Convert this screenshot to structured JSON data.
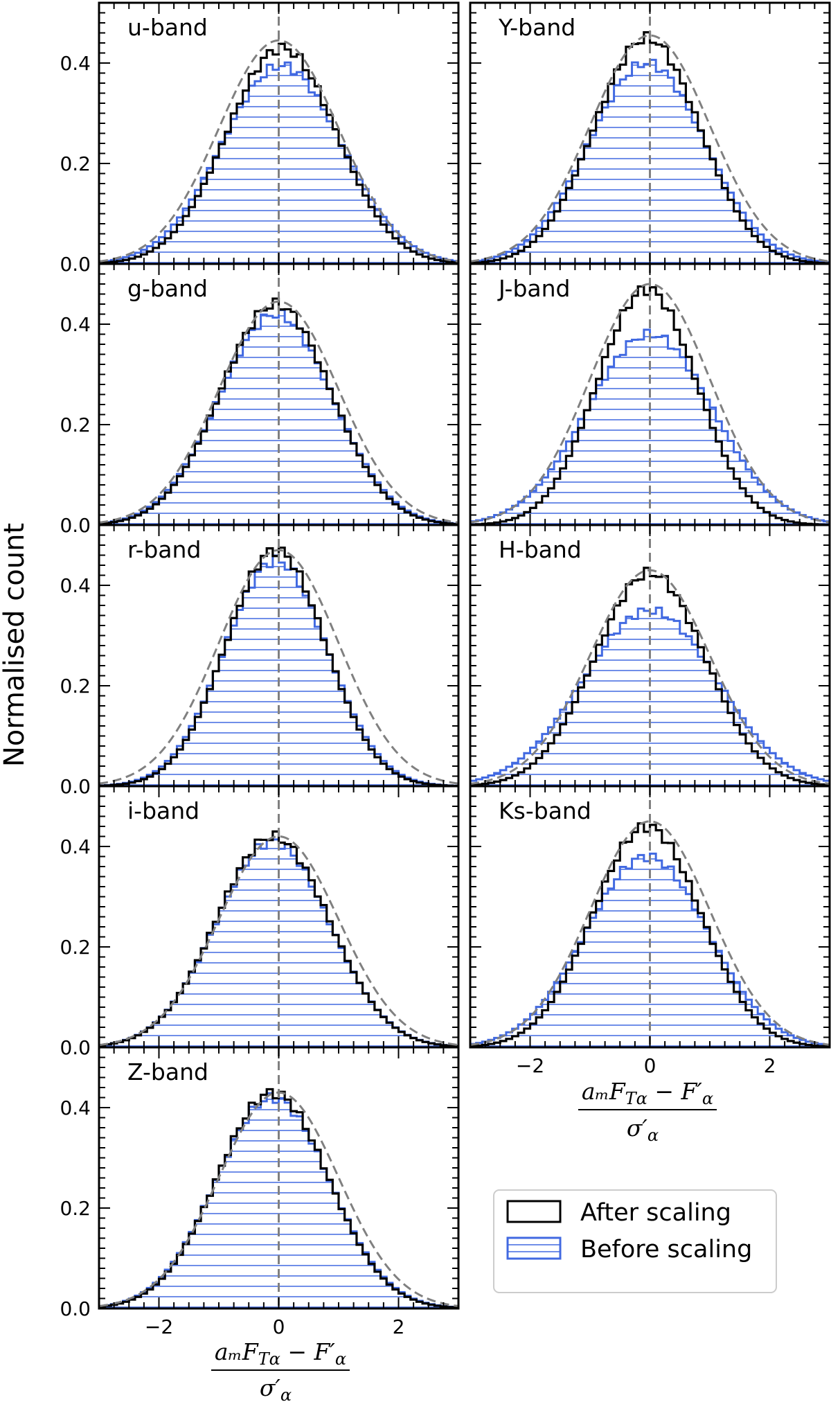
{
  "chart_data": {
    "type": "histogram-grid",
    "ylabel": "Normalised count",
    "xlabel_numerator": "a_m F_{Tα} − F′_α",
    "xlabel_denominator": "σ′_α",
    "xlabel_num_text": "aₘF",
    "xlabel_num_sub": "Tα",
    "xlabel_num_rest": " − F′",
    "xlabel_num_sub2": "α",
    "xlabel_den_text": "σ′",
    "xlabel_den_sub": "α",
    "xlim": [
      -3,
      3
    ],
    "ylim": [
      0,
      0.52
    ],
    "xticks": [
      -2,
      0,
      2
    ],
    "xtick_labels": [
      "−2",
      "0",
      "2"
    ],
    "yticks": [
      0.0,
      0.2,
      0.4
    ],
    "ytick_labels": [
      "0.0",
      "0.2",
      "0.4"
    ],
    "reference": "dashed grey normal distribution, vertical dashed line at 0",
    "legend": {
      "placement": "bottom-right",
      "entries": [
        {
          "label": "After scaling",
          "color": "#000000"
        },
        {
          "label": "Before scaling",
          "color": "#4169e1"
        }
      ]
    },
    "panels": [
      {
        "label": "u-band",
        "gauss_peak": 0.445,
        "after": {
          "peak": 0.43,
          "mu": 0.05,
          "sigma": 0.92
        },
        "before": {
          "peak": 0.395,
          "mu": 0.05,
          "sigma": 1.0
        }
      },
      {
        "label": "g-band",
        "gauss_peak": 0.445,
        "after": {
          "peak": 0.44,
          "mu": -0.05,
          "sigma": 0.92
        },
        "before": {
          "peak": 0.42,
          "mu": -0.05,
          "sigma": 0.95
        }
      },
      {
        "label": "r-band",
        "gauss_peak": 0.47,
        "after": {
          "peak": 0.47,
          "mu": -0.05,
          "sigma": 0.83
        },
        "before": {
          "peak": 0.45,
          "mu": -0.05,
          "sigma": 0.86
        }
      },
      {
        "label": "i-band",
        "gauss_peak": 0.42,
        "after": {
          "peak": 0.42,
          "mu": -0.1,
          "sigma": 0.94
        },
        "before": {
          "peak": 0.41,
          "mu": -0.1,
          "sigma": 0.95
        }
      },
      {
        "label": "Z-band",
        "gauss_peak": 0.43,
        "after": {
          "peak": 0.43,
          "mu": -0.1,
          "sigma": 0.93
        },
        "before": {
          "peak": 0.42,
          "mu": -0.1,
          "sigma": 0.95
        }
      },
      {
        "label": "Y-band",
        "gauss_peak": 0.455,
        "after": {
          "peak": 0.45,
          "mu": -0.05,
          "sigma": 0.88
        },
        "before": {
          "peak": 0.4,
          "mu": -0.05,
          "sigma": 0.97
        }
      },
      {
        "label": "J-band",
        "gauss_peak": 0.48,
        "after": {
          "peak": 0.47,
          "mu": -0.05,
          "sigma": 0.83
        },
        "before": {
          "peak": 0.38,
          "mu": 0.0,
          "sigma": 1.05
        }
      },
      {
        "label": "H-band",
        "gauss_peak": 0.43,
        "after": {
          "peak": 0.425,
          "mu": 0.0,
          "sigma": 0.92
        },
        "before": {
          "peak": 0.35,
          "mu": 0.0,
          "sigma": 1.12
        }
      },
      {
        "label": "Ks-band",
        "gauss_peak": 0.45,
        "after": {
          "peak": 0.44,
          "mu": -0.05,
          "sigma": 0.9
        },
        "before": {
          "peak": 0.38,
          "mu": -0.05,
          "sigma": 1.02
        }
      }
    ]
  },
  "colors": {
    "after": "#000000",
    "before": "#4169e1",
    "reference": "#808080"
  }
}
